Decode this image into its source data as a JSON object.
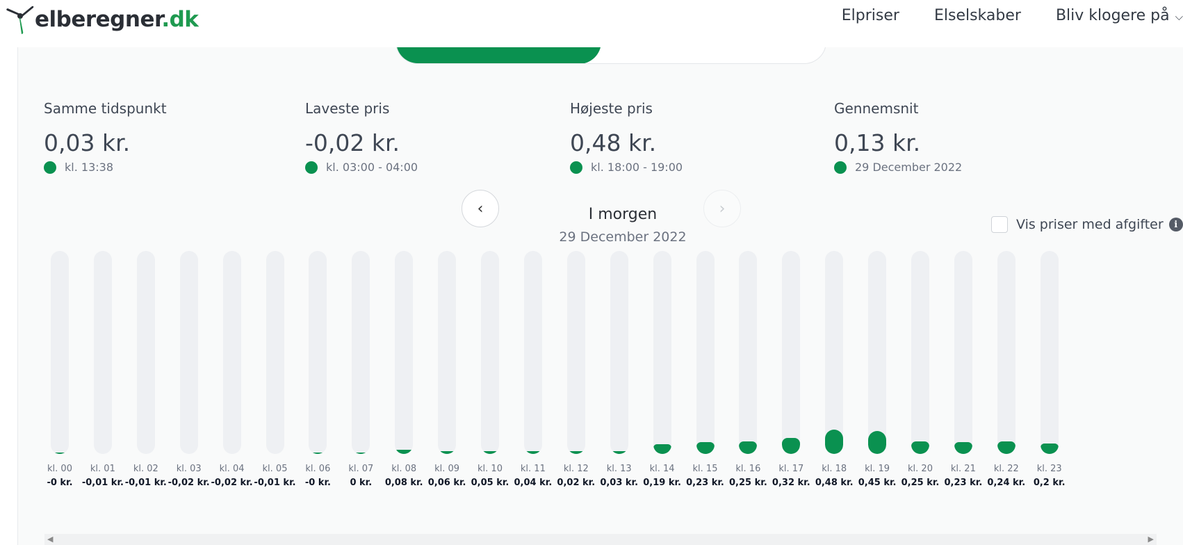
{
  "header": {
    "logo_main": "elberegner",
    "logo_tld": ".dk",
    "nav": [
      {
        "label": "Elpriser"
      },
      {
        "label": "Elselskaber"
      },
      {
        "label": "Bliv klogere på"
      }
    ]
  },
  "stats": [
    {
      "label": "Samme tidspunkt",
      "value": "0,03 kr.",
      "sub": "kl. 13:38"
    },
    {
      "label": "Laveste pris",
      "value": "-0,02 kr.",
      "sub": "kl. 03:00 - 04:00"
    },
    {
      "label": "Højeste pris",
      "value": "0,48 kr.",
      "sub": "kl. 18:00 - 19:00"
    },
    {
      "label": "Gennemsnit",
      "value": "0,13 kr.",
      "sub": "29 December 2022"
    }
  ],
  "day_nav": {
    "title": "I morgen",
    "date": "29 December 2022",
    "prev_icon": "chevron-left-icon",
    "next_icon": "chevron-right-icon"
  },
  "fee_toggle": {
    "label": "Vis priser med afgifter",
    "checked": false
  },
  "colors": {
    "accent": "#0a9150",
    "track": "#eef0f3"
  },
  "chart_data": {
    "type": "bar",
    "categories": [
      "kl. 00",
      "kl. 01",
      "kl. 02",
      "kl. 03",
      "kl. 04",
      "kl. 05",
      "kl. 06",
      "kl. 07",
      "kl. 08",
      "kl. 09",
      "kl. 10",
      "kl. 11",
      "kl. 12",
      "kl. 13",
      "kl. 14",
      "kl. 15",
      "kl. 16",
      "kl. 17",
      "kl. 18",
      "kl. 19",
      "kl. 20",
      "kl. 21",
      "kl. 22",
      "kl. 23"
    ],
    "values": [
      -0.0,
      -0.01,
      -0.01,
      -0.02,
      -0.02,
      -0.01,
      -0.0,
      0.0,
      0.08,
      0.06,
      0.05,
      0.04,
      0.02,
      0.03,
      0.19,
      0.23,
      0.25,
      0.32,
      0.48,
      0.45,
      0.25,
      0.23,
      0.24,
      0.2
    ],
    "value_labels": [
      "-0 kr.",
      "-0,01 kr.",
      "-0,01 kr.",
      "-0,02 kr.",
      "-0,02 kr.",
      "-0,01 kr.",
      "-0 kr.",
      "0 kr.",
      "0,08 kr.",
      "0,06 kr.",
      "0,05 kr.",
      "0,04 kr.",
      "0,02 kr.",
      "0,03 kr.",
      "0,19 kr.",
      "0,23 kr.",
      "0,25 kr.",
      "0,32 kr.",
      "0,48 kr.",
      "0,45 kr.",
      "0,25 kr.",
      "0,23 kr.",
      "0,24 kr.",
      "0,2 kr."
    ],
    "ylim": [
      0,
      4.0
    ]
  }
}
